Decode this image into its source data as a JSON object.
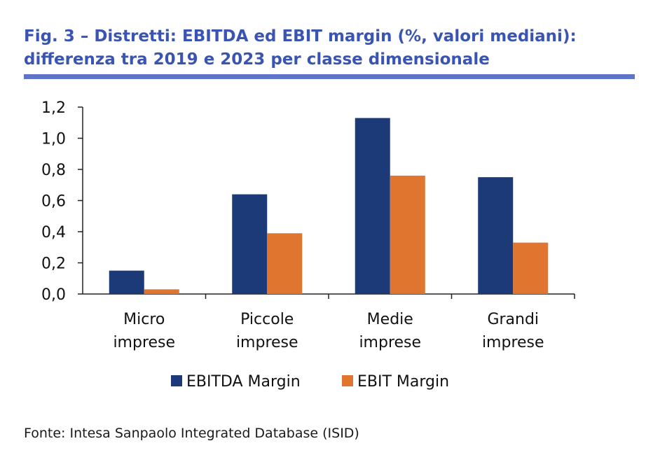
{
  "title_line1": "Fig. 3 – Distretti: EBITDA ed EBIT margin (%, valori mediani):",
  "title_line2": "differenza tra 2019 e 2023 per classe dimensionale",
  "source": "Fonte: Intesa Sanpaolo Integrated Database (ISID)",
  "colors": {
    "title": "#3a54b4",
    "ebitda": "#1c3a78",
    "ebit": "#e07530",
    "rule": "#5d74c8"
  },
  "chart_data": {
    "type": "bar",
    "categories": [
      [
        "Micro",
        "imprese"
      ],
      [
        "Piccole",
        "imprese"
      ],
      [
        "Medie",
        "imprese"
      ],
      [
        "Grandi",
        "imprese"
      ]
    ],
    "series": [
      {
        "name": "EBITDA Margin",
        "values": [
          0.15,
          0.64,
          1.13,
          0.75
        ],
        "color": "#1c3a78"
      },
      {
        "name": "EBIT Margin",
        "values": [
          0.03,
          0.39,
          0.76,
          0.33
        ],
        "color": "#e07530"
      }
    ],
    "ylim": [
      0,
      1.2
    ],
    "yticks": [
      "0,0",
      "0,2",
      "0,4",
      "0,6",
      "0,8",
      "1,0",
      "1,2"
    ],
    "grid": false,
    "legend": "bottom"
  }
}
